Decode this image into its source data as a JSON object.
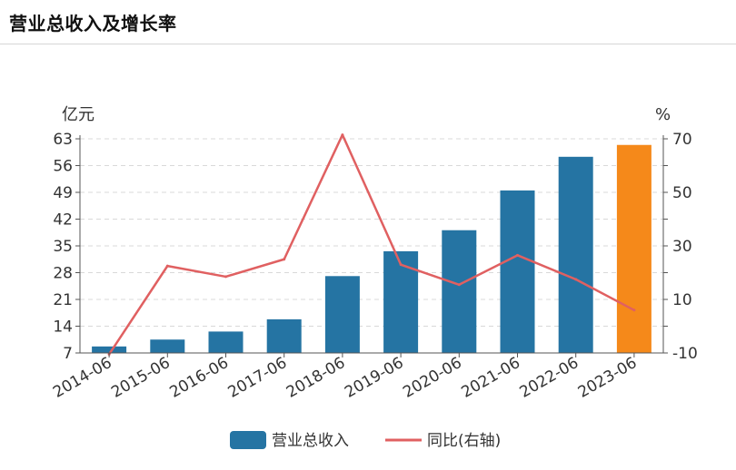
{
  "title": "营业总收入及增长率",
  "chart_data": {
    "type": "bar",
    "categories": [
      "2014-06",
      "2015-06",
      "2016-06",
      "2017-06",
      "2018-06",
      "2019-06",
      "2020-06",
      "2021-06",
      "2022-06",
      "2023-06"
    ],
    "series": [
      {
        "name": "营业总收入",
        "type": "bar",
        "axis": "left",
        "color": "#2574a3",
        "values": [
          8.7,
          10.5,
          12.6,
          15.8,
          27.1,
          33.6,
          39.1,
          49.5,
          58.3,
          61.4
        ]
      },
      {
        "name": "同比(右轴)",
        "type": "line",
        "axis": "right",
        "color": "#e06061",
        "values": [
          -10.5,
          22.5,
          18.5,
          25.0,
          71.5,
          23.0,
          15.5,
          26.5,
          17.5,
          6.0
        ]
      }
    ],
    "highlight": {
      "index": 9,
      "color": "#f5891a"
    },
    "left_axis": {
      "unit": "亿元",
      "ticks": [
        7,
        14,
        21,
        28,
        35,
        42,
        49,
        56,
        63
      ],
      "ylim": [
        7,
        63
      ]
    },
    "right_axis": {
      "unit": "%",
      "ticks": [
        -10,
        10,
        30,
        50,
        70
      ],
      "ylim": [
        -10,
        70
      ]
    },
    "grid": true,
    "legend_position": "bottom"
  }
}
